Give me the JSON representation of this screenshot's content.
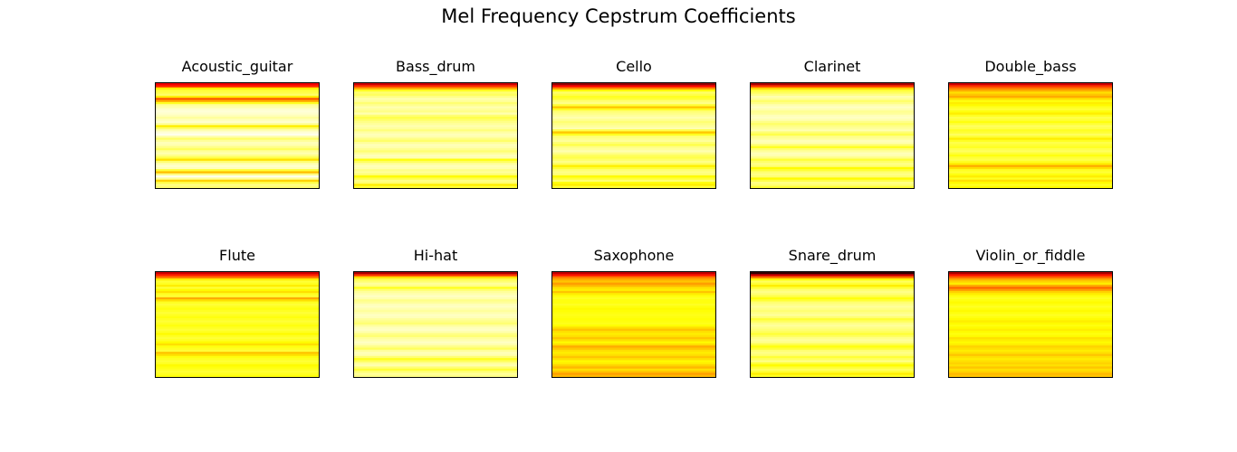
{
  "figure": {
    "title": "Mel Frequency Cepstrum Coefficients"
  },
  "chart_data": {
    "type": "heatmap",
    "colormap": "hot",
    "axes_visible": false,
    "grid": false,
    "rows": 2,
    "columns": 5,
    "panels": [
      {
        "title": "Acoustic_guitar",
        "bands": [
          0.35,
          0.42,
          0.72,
          0.8,
          0.82,
          0.85,
          0.72,
          0.5,
          0.62,
          0.78,
          0.9,
          0.92,
          0.95,
          0.96,
          0.95,
          0.93,
          0.9,
          0.93,
          0.95,
          0.9,
          0.72,
          0.85,
          0.92,
          0.96,
          0.98,
          0.92,
          0.85,
          0.9,
          0.93,
          0.92,
          0.88,
          0.84,
          0.9,
          0.92,
          0.88,
          0.82,
          0.7,
          0.86,
          0.92,
          0.95,
          0.93,
          0.8,
          0.65,
          0.88,
          0.98,
          0.9,
          0.68,
          0.82,
          0.88,
          0.86
        ]
      },
      {
        "title": "Bass_drum",
        "bands": [
          0.3,
          0.45,
          0.62,
          0.78,
          0.86,
          0.84,
          0.88,
          0.92,
          0.9,
          0.86,
          0.89,
          0.92,
          0.9,
          0.88,
          0.92,
          0.86,
          0.82,
          0.85,
          0.88,
          0.9,
          0.92,
          0.9,
          0.87,
          0.91,
          0.93,
          0.92,
          0.88,
          0.85,
          0.9,
          0.93,
          0.92,
          0.89,
          0.86,
          0.9,
          0.93,
          0.92,
          0.76,
          0.84,
          0.9,
          0.93,
          0.92,
          0.88,
          0.9,
          0.86,
          0.74,
          0.82,
          0.88,
          0.86,
          0.72,
          0.8
        ]
      },
      {
        "title": "Cello",
        "bands": [
          0.22,
          0.38,
          0.58,
          0.75,
          0.85,
          0.82,
          0.78,
          0.8,
          0.86,
          0.88,
          0.8,
          0.66,
          0.78,
          0.86,
          0.88,
          0.9,
          0.92,
          0.89,
          0.86,
          0.88,
          0.9,
          0.92,
          0.82,
          0.66,
          0.78,
          0.86,
          0.88,
          0.9,
          0.86,
          0.82,
          0.88,
          0.9,
          0.92,
          0.88,
          0.84,
          0.82,
          0.85,
          0.88,
          0.84,
          0.72,
          0.8,
          0.86,
          0.88,
          0.86,
          0.74,
          0.8,
          0.86,
          0.76,
          0.72,
          0.8
        ]
      },
      {
        "title": "Clarinet",
        "bands": [
          0.25,
          0.45,
          0.68,
          0.8,
          0.84,
          0.88,
          0.92,
          0.9,
          0.85,
          0.88,
          0.92,
          0.94,
          0.92,
          0.89,
          0.9,
          0.93,
          0.94,
          0.92,
          0.88,
          0.85,
          0.88,
          0.9,
          0.92,
          0.86,
          0.82,
          0.88,
          0.9,
          0.93,
          0.92,
          0.86,
          0.78,
          0.86,
          0.9,
          0.93,
          0.92,
          0.88,
          0.8,
          0.85,
          0.88,
          0.86,
          0.74,
          0.8,
          0.86,
          0.88,
          0.86,
          0.74,
          0.82,
          0.88,
          0.86,
          0.8
        ]
      },
      {
        "title": "Double_bass",
        "bands": [
          0.3,
          0.45,
          0.55,
          0.62,
          0.7,
          0.66,
          0.62,
          0.7,
          0.76,
          0.72,
          0.74,
          0.78,
          0.8,
          0.76,
          0.72,
          0.78,
          0.82,
          0.8,
          0.76,
          0.8,
          0.84,
          0.82,
          0.78,
          0.8,
          0.84,
          0.8,
          0.72,
          0.78,
          0.82,
          0.8,
          0.78,
          0.82,
          0.84,
          0.8,
          0.76,
          0.8,
          0.82,
          0.78,
          0.72,
          0.62,
          0.7,
          0.78,
          0.8,
          0.76,
          0.72,
          0.78,
          0.7,
          0.74,
          0.78,
          0.74
        ]
      },
      {
        "title": "Flute",
        "bands": [
          0.3,
          0.42,
          0.55,
          0.72,
          0.8,
          0.78,
          0.72,
          0.8,
          0.74,
          0.7,
          0.78,
          0.8,
          0.62,
          0.7,
          0.78,
          0.8,
          0.78,
          0.76,
          0.78,
          0.8,
          0.78,
          0.76,
          0.78,
          0.8,
          0.78,
          0.76,
          0.78,
          0.8,
          0.78,
          0.74,
          0.78,
          0.8,
          0.78,
          0.74,
          0.7,
          0.76,
          0.78,
          0.8,
          0.66,
          0.7,
          0.76,
          0.78,
          0.8,
          0.78,
          0.74,
          0.76,
          0.78,
          0.8,
          0.78,
          0.76
        ]
      },
      {
        "title": "Hi-hat",
        "bands": [
          0.25,
          0.45,
          0.7,
          0.82,
          0.86,
          0.9,
          0.88,
          0.78,
          0.86,
          0.9,
          0.92,
          0.94,
          0.92,
          0.88,
          0.9,
          0.93,
          0.94,
          0.92,
          0.9,
          0.92,
          0.94,
          0.93,
          0.9,
          0.88,
          0.86,
          0.9,
          0.93,
          0.94,
          0.92,
          0.88,
          0.86,
          0.9,
          0.92,
          0.94,
          0.92,
          0.88,
          0.84,
          0.9,
          0.93,
          0.92,
          0.86,
          0.78,
          0.84,
          0.9,
          0.92,
          0.86,
          0.8,
          0.86,
          0.9,
          0.88
        ]
      },
      {
        "title": "Saxophone",
        "bands": [
          0.28,
          0.4,
          0.55,
          0.62,
          0.66,
          0.6,
          0.64,
          0.7,
          0.72,
          0.66,
          0.72,
          0.76,
          0.78,
          0.76,
          0.76,
          0.78,
          0.76,
          0.74,
          0.75,
          0.76,
          0.77,
          0.76,
          0.75,
          0.76,
          0.77,
          0.75,
          0.7,
          0.66,
          0.7,
          0.72,
          0.7,
          0.66,
          0.7,
          0.74,
          0.7,
          0.62,
          0.66,
          0.7,
          0.72,
          0.7,
          0.66,
          0.7,
          0.74,
          0.72,
          0.68,
          0.64,
          0.7,
          0.66,
          0.6,
          0.64
        ]
      },
      {
        "title": "Snare_drum",
        "bands": [
          0.08,
          0.3,
          0.55,
          0.75,
          0.84,
          0.8,
          0.72,
          0.8,
          0.86,
          0.88,
          0.86,
          0.82,
          0.76,
          0.8,
          0.86,
          0.88,
          0.9,
          0.88,
          0.86,
          0.88,
          0.9,
          0.86,
          0.8,
          0.84,
          0.88,
          0.9,
          0.88,
          0.86,
          0.84,
          0.8,
          0.84,
          0.88,
          0.9,
          0.88,
          0.82,
          0.76,
          0.8,
          0.86,
          0.88,
          0.86,
          0.8,
          0.84,
          0.88,
          0.8,
          0.74,
          0.8,
          0.84,
          0.8,
          0.72,
          0.78
        ]
      },
      {
        "title": "Violin_or_fiddle",
        "bands": [
          0.25,
          0.4,
          0.52,
          0.62,
          0.68,
          0.72,
          0.62,
          0.52,
          0.6,
          0.68,
          0.72,
          0.76,
          0.78,
          0.76,
          0.74,
          0.76,
          0.78,
          0.76,
          0.74,
          0.76,
          0.78,
          0.76,
          0.74,
          0.72,
          0.74,
          0.76,
          0.74,
          0.72,
          0.74,
          0.76,
          0.74,
          0.7,
          0.72,
          0.74,
          0.72,
          0.68,
          0.7,
          0.72,
          0.7,
          0.66,
          0.7,
          0.72,
          0.7,
          0.68,
          0.7,
          0.66,
          0.7,
          0.68,
          0.64,
          0.66
        ]
      }
    ]
  }
}
